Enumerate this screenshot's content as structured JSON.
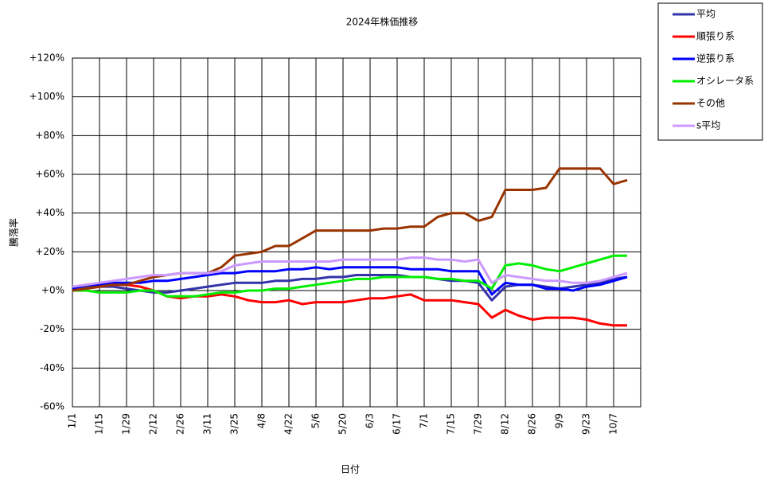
{
  "chart_data": {
    "type": "line",
    "title": "2024年株価推移",
    "x_label": "日付",
    "y_label": "騰落率",
    "categories": [
      "1/1",
      null,
      "1/15",
      null,
      "1/29",
      null,
      "2/12",
      null,
      "2/26",
      null,
      "3/11",
      null,
      "3/25",
      null,
      "4/8",
      null,
      "4/22",
      null,
      "5/6",
      null,
      "5/20",
      null,
      "6/3",
      null,
      "6/17",
      null,
      "7/1",
      null,
      "7/15",
      null,
      "7/29",
      null,
      "8/12",
      null,
      "8/26",
      null,
      "9/9",
      null,
      "9/23",
      null,
      "10/7",
      null
    ],
    "ylim": [
      -60,
      120
    ],
    "yticks": [
      {
        "value": -60,
        "label": "-60%"
      },
      {
        "value": -40,
        "label": "-40%"
      },
      {
        "value": -20,
        "label": "-20%"
      },
      {
        "value": 0,
        "label": "+0%"
      },
      {
        "value": 20,
        "label": "+20%"
      },
      {
        "value": 40,
        "label": "+40%"
      },
      {
        "value": 60,
        "label": "+60%"
      },
      {
        "value": 80,
        "label": "+80%"
      },
      {
        "value": 100,
        "label": "+100%"
      },
      {
        "value": 120,
        "label": "+120%"
      }
    ],
    "grid": true,
    "legend": "outside-top-right",
    "series": [
      {
        "name": "平均",
        "color": "#3333aa",
        "values": [
          1,
          2,
          2,
          2,
          1,
          0,
          -1,
          -1,
          0,
          1,
          2,
          3,
          4,
          4,
          4,
          5,
          5,
          6,
          6,
          7,
          7,
          8,
          8,
          8,
          8,
          7,
          7,
          6,
          5,
          5,
          4,
          -5,
          2,
          3,
          3,
          2,
          1,
          2,
          3,
          4,
          6,
          7
        ]
      },
      {
        "name": "順張り系",
        "color": "#ff0000",
        "values": [
          0,
          1,
          2,
          3,
          3,
          2,
          0,
          -3,
          -4,
          -3,
          -3,
          -2,
          -3,
          -5,
          -6,
          -6,
          -5,
          -7,
          -6,
          -6,
          -6,
          -5,
          -4,
          -4,
          -3,
          -2,
          -5,
          -5,
          -5,
          -6,
          -7,
          -14,
          -10,
          -13,
          -15,
          -14,
          -14,
          -14,
          -15,
          -17,
          -18,
          -18
        ]
      },
      {
        "name": "逆張り系",
        "color": "#0000ff",
        "values": [
          1,
          3,
          3,
          4,
          4,
          4,
          5,
          5,
          6,
          7,
          8,
          9,
          9,
          10,
          10,
          10,
          11,
          11,
          12,
          11,
          12,
          12,
          12,
          12,
          12,
          11,
          11,
          11,
          10,
          10,
          10,
          -2,
          4,
          3,
          3,
          1,
          1,
          0,
          2,
          3,
          5,
          7
        ]
      },
      {
        "name": "オシレータ系",
        "color": "#00ee00",
        "values": [
          0,
          0,
          -1,
          -1,
          -1,
          0,
          0,
          -3,
          -3,
          -3,
          -2,
          -1,
          -1,
          0,
          0,
          1,
          1,
          2,
          3,
          4,
          5,
          6,
          6,
          7,
          7,
          7,
          7,
          6,
          6,
          5,
          5,
          1,
          13,
          14,
          13,
          11,
          10,
          12,
          14,
          16,
          18,
          18
        ]
      },
      {
        "name": "その他",
        "color": "#993300",
        "values": [
          0,
          1,
          2,
          3,
          3,
          5,
          7,
          8,
          9,
          9,
          9,
          12,
          18,
          19,
          20,
          23,
          23,
          27,
          31,
          31,
          31,
          31,
          31,
          32,
          32,
          33,
          33,
          38,
          40,
          40,
          36,
          38,
          52,
          52,
          52,
          53,
          63,
          63,
          63,
          63,
          55,
          57
        ]
      },
      {
        "name": "s平均",
        "color": "#cc99ff",
        "values": [
          2,
          3,
          4,
          5,
          6,
          7,
          8,
          8,
          9,
          9,
          9,
          10,
          13,
          14,
          15,
          15,
          15,
          15,
          15,
          15,
          16,
          16,
          16,
          16,
          16,
          17,
          17,
          16,
          16,
          15,
          16,
          4,
          8,
          7,
          6,
          5,
          5,
          4,
          4,
          5,
          7,
          9
        ]
      }
    ]
  }
}
